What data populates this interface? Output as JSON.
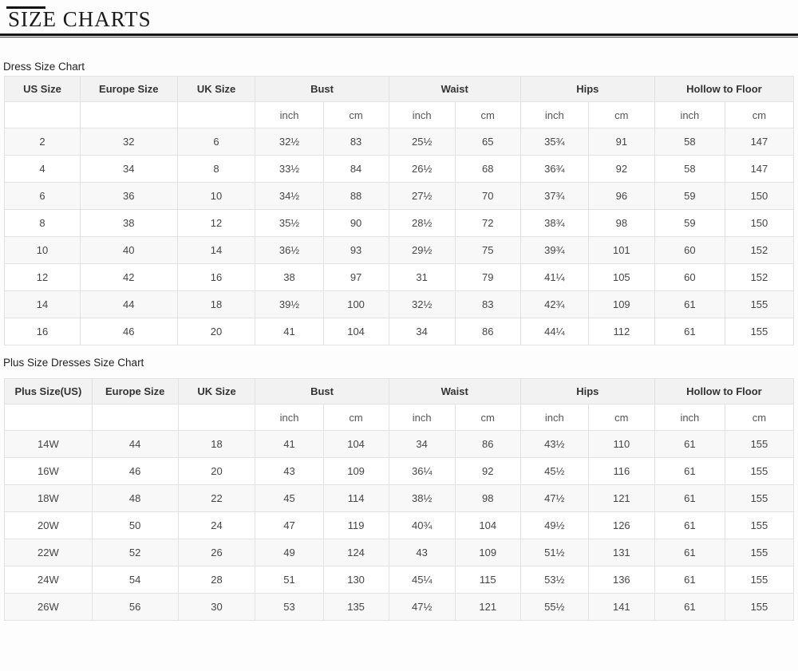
{
  "page": {
    "title": "SIZE CHARTS"
  },
  "tables": [
    {
      "label": "Dress Size Chart",
      "group_headers": [
        "US Size",
        "Europe Size",
        "UK Size",
        "Bust",
        "Waist",
        "Hips",
        "Hollow to Floor"
      ],
      "unit_row": [
        "",
        "",
        "",
        "inch",
        "cm",
        "inch",
        "cm",
        "inch",
        "cm",
        "inch",
        "cm"
      ],
      "rows": [
        [
          "2",
          "32",
          "6",
          "32½",
          "83",
          "25½",
          "65",
          "35¾",
          "91",
          "58",
          "147"
        ],
        [
          "4",
          "34",
          "8",
          "33½",
          "84",
          "26½",
          "68",
          "36¾",
          "92",
          "58",
          "147"
        ],
        [
          "6",
          "36",
          "10",
          "34½",
          "88",
          "27½",
          "70",
          "37¾",
          "96",
          "59",
          "150"
        ],
        [
          "8",
          "38",
          "12",
          "35½",
          "90",
          "28½",
          "72",
          "38¾",
          "98",
          "59",
          "150"
        ],
        [
          "10",
          "40",
          "14",
          "36½",
          "93",
          "29½",
          "75",
          "39¾",
          "101",
          "60",
          "152"
        ],
        [
          "12",
          "42",
          "16",
          "38",
          "97",
          "31",
          "79",
          "41¼",
          "105",
          "60",
          "152"
        ],
        [
          "14",
          "44",
          "18",
          "39½",
          "100",
          "32½",
          "83",
          "42¾",
          "109",
          "61",
          "155"
        ],
        [
          "16",
          "46",
          "20",
          "41",
          "104",
          "34",
          "86",
          "44¼",
          "112",
          "61",
          "155"
        ]
      ]
    },
    {
      "label": "Plus Size Dresses Size Chart",
      "group_headers": [
        "Plus Size(US)",
        "Europe Size",
        "UK Size",
        "Bust",
        "Waist",
        "Hips",
        "Hollow to Floor"
      ],
      "unit_row": [
        "",
        "",
        "",
        "inch",
        "cm",
        "inch",
        "cm",
        "inch",
        "cm",
        "inch",
        "cm"
      ],
      "rows": [
        [
          "14W",
          "44",
          "18",
          "41",
          "104",
          "34",
          "86",
          "43½",
          "110",
          "61",
          "155"
        ],
        [
          "16W",
          "46",
          "20",
          "43",
          "109",
          "36¼",
          "92",
          "45½",
          "116",
          "61",
          "155"
        ],
        [
          "18W",
          "48",
          "22",
          "45",
          "114",
          "38½",
          "98",
          "47½",
          "121",
          "61",
          "155"
        ],
        [
          "20W",
          "50",
          "24",
          "47",
          "119",
          "40¾",
          "104",
          "49½",
          "126",
          "61",
          "155"
        ],
        [
          "22W",
          "52",
          "26",
          "49",
          "124",
          "43",
          "109",
          "51½",
          "131",
          "61",
          "155"
        ],
        [
          "24W",
          "54",
          "28",
          "51",
          "130",
          "45¼",
          "115",
          "53½",
          "136",
          "61",
          "155"
        ],
        [
          "26W",
          "56",
          "30",
          "53",
          "135",
          "47½",
          "121",
          "55½",
          "141",
          "61",
          "155"
        ]
      ]
    }
  ],
  "colors": {
    "header_bg": "#f2f2f2",
    "stripe_bg": "#f8f8f8",
    "border": "#e2e2e2",
    "title_text": "#1a1a1a",
    "cell_text": "#454545"
  }
}
